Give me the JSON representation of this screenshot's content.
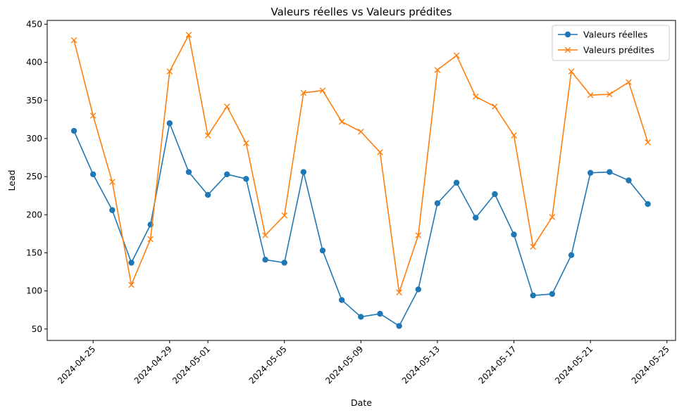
{
  "chart_data": {
    "type": "line",
    "title": "Valeurs réelles vs Valeurs prédites",
    "xlabel": "Date",
    "ylabel": "Lead",
    "x": [
      "2024-04-24",
      "2024-04-25",
      "2024-04-26",
      "2024-04-27",
      "2024-04-28",
      "2024-04-29",
      "2024-04-30",
      "2024-05-01",
      "2024-05-02",
      "2024-05-03",
      "2024-05-04",
      "2024-05-05",
      "2024-05-06",
      "2024-05-07",
      "2024-05-08",
      "2024-05-09",
      "2024-05-10",
      "2024-05-11",
      "2024-05-12",
      "2024-05-13",
      "2024-05-14",
      "2024-05-15",
      "2024-05-16",
      "2024-05-17",
      "2024-05-18",
      "2024-05-19",
      "2024-05-20",
      "2024-05-21",
      "2024-05-22",
      "2024-05-23",
      "2024-05-24"
    ],
    "series": [
      {
        "name": "Valeurs réelles",
        "color": "#1f77b4",
        "marker": "circle",
        "values": [
          310,
          253,
          206,
          137,
          187,
          320,
          256,
          226,
          253,
          247,
          141,
          137,
          256,
          153,
          88,
          66,
          70,
          54,
          102,
          215,
          242,
          196,
          227,
          174,
          94,
          96,
          147,
          255,
          256,
          245,
          214
        ]
      },
      {
        "name": "Valeurs prédites",
        "color": "#ff7f0e",
        "marker": "x",
        "values": [
          429,
          330,
          243,
          108,
          168,
          388,
          436,
          304,
          342,
          294,
          173,
          199,
          360,
          363,
          322,
          309,
          282,
          98,
          173,
          390,
          409,
          355,
          342,
          304,
          158,
          197,
          388,
          357,
          358,
          374,
          295
        ]
      }
    ],
    "xticks": [
      "2024-04-25",
      "2024-04-29",
      "2024-05-01",
      "2024-05-05",
      "2024-05-09",
      "2024-05-13",
      "2024-05-17",
      "2024-05-21",
      "2024-05-25"
    ],
    "xlim": [
      "2024-04-22",
      "2024-05-25"
    ],
    "ylim": [
      35,
      455
    ],
    "yticks": [
      50,
      100,
      150,
      200,
      250,
      300,
      350,
      400,
      450
    ],
    "grid": false,
    "legend": "top-right"
  }
}
